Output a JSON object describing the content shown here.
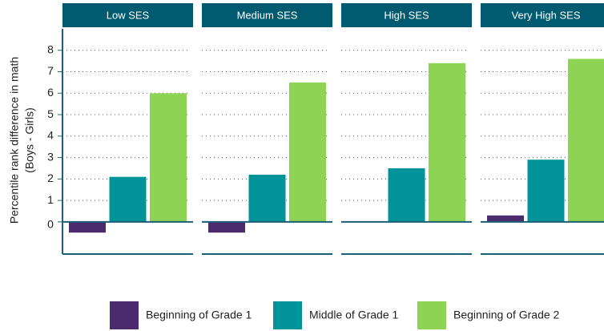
{
  "chart_data": {
    "type": "bar",
    "ylabel": [
      "Percentile rank difference in math",
      "(Boys - Girls)"
    ],
    "facets": [
      "Low SES",
      "Medium SES",
      "High SES",
      "Very High SES"
    ],
    "series": [
      {
        "name": "Beginning of Grade 1",
        "color": "#4b2a6e",
        "values": [
          -0.5,
          -0.5,
          0,
          0.3
        ]
      },
      {
        "name": "Middle of Grade 1",
        "color": "#00939a",
        "values": [
          2.1,
          2.2,
          2.5,
          2.9
        ]
      },
      {
        "name": "Beginning of Grade 2",
        "color": "#8dd454",
        "values": [
          6.0,
          6.5,
          7.4,
          7.6
        ]
      }
    ],
    "ylim": [
      -1.5,
      9
    ],
    "yticks": [
      0,
      1,
      2,
      3,
      4,
      5,
      6,
      7,
      8
    ],
    "grid": true,
    "strip_color": "#005a70"
  }
}
